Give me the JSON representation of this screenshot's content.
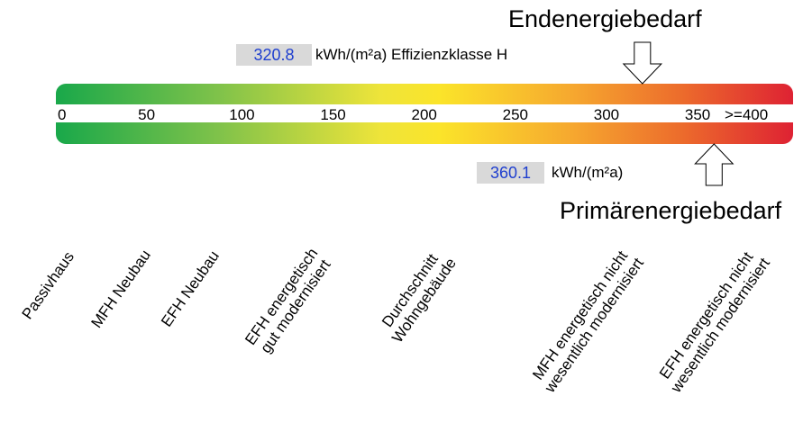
{
  "chart_data": {
    "type": "bar",
    "title": "",
    "scale": {
      "min": 0,
      "max": 400,
      "ticks": [
        "0",
        "50",
        "100",
        "150",
        "200",
        "250",
        "300",
        "350",
        ">=400"
      ],
      "colors": [
        "#19a84a",
        "#7fc24a",
        "#fbe42a",
        "#f6a82f",
        "#ec6b2c",
        "#de2233"
      ]
    },
    "endenergie": {
      "label": "Endenergiebedarf",
      "value": 320.8,
      "value_text": "320.8",
      "unit_text": "kWh/(m²a) Effizienzklasse H"
    },
    "primaerenergie": {
      "label": "Primärenergiebedarf",
      "value": 360.1,
      "value_text": "360.1",
      "unit_text": "kWh/(m²a)"
    },
    "reference_labels": [
      {
        "text": "Passivhaus"
      },
      {
        "text": "MFH Neubau"
      },
      {
        "text": "EFH Neubau"
      },
      {
        "text": "EFH energetisch\ngut modernisiert"
      },
      {
        "text": "Durchschnitt\nWohngebäude"
      },
      {
        "text": "MFH energetisch nicht\nwesentlich modernisiert"
      },
      {
        "text": "EFH energetisch nicht\nwesentlich modernisiert"
      }
    ]
  }
}
